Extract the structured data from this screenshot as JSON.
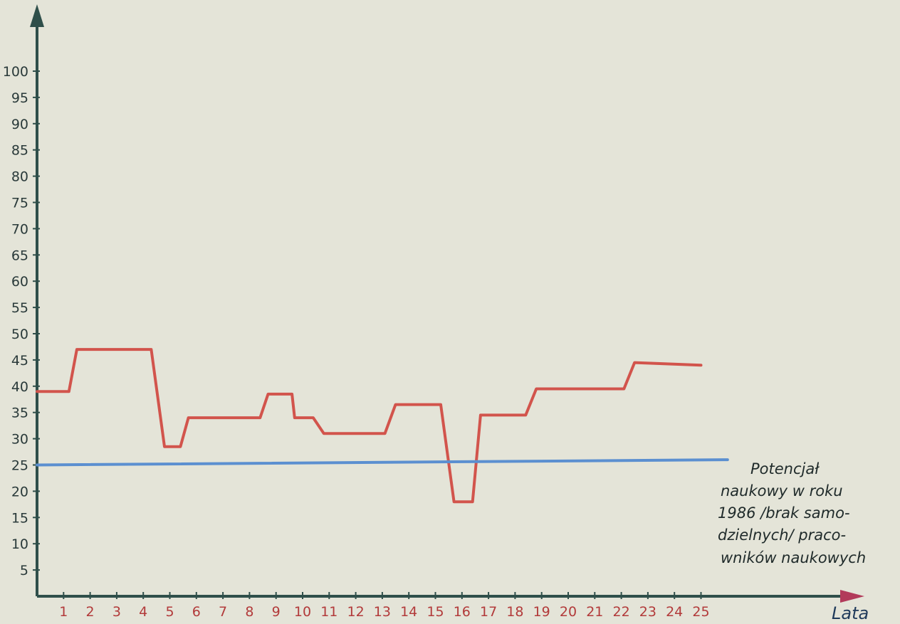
{
  "chart_data": {
    "type": "line",
    "title": "",
    "xlabel": "Lata",
    "ylabel": "",
    "x_ticks": [
      1,
      2,
      3,
      4,
      5,
      6,
      7,
      8,
      9,
      10,
      11,
      12,
      13,
      14,
      15,
      16,
      17,
      18,
      19,
      20,
      21,
      22,
      23,
      24,
      25
    ],
    "y_ticks": [
      5,
      10,
      15,
      20,
      25,
      30,
      35,
      40,
      45,
      50,
      55,
      60,
      65,
      70,
      75,
      80,
      85,
      90,
      95,
      100
    ],
    "xlim": [
      0,
      26.5
    ],
    "ylim": [
      0,
      110
    ],
    "grid": false,
    "series": [
      {
        "color": "#d2544c",
        "points": [
          [
            0,
            39
          ],
          [
            1.2,
            39
          ],
          [
            1.5,
            47
          ],
          [
            4.3,
            47
          ],
          [
            4.8,
            28.5
          ],
          [
            5.4,
            28.5
          ],
          [
            5.7,
            34
          ],
          [
            8.4,
            34
          ],
          [
            8.7,
            38.5
          ],
          [
            9.6,
            38.5
          ],
          [
            9.7,
            34
          ],
          [
            10.4,
            34
          ],
          [
            10.8,
            31
          ],
          [
            13.1,
            31
          ],
          [
            13.5,
            36.5
          ],
          [
            15.2,
            36.5
          ],
          [
            15.7,
            18
          ],
          [
            16.4,
            18
          ],
          [
            16.7,
            34.5
          ],
          [
            18.4,
            34.5
          ],
          [
            18.8,
            39.5
          ],
          [
            20.9,
            39.5
          ],
          [
            22.1,
            39.5
          ],
          [
            22.5,
            44.5
          ],
          [
            25,
            44
          ]
        ]
      },
      {
        "color": "#5b8fd0",
        "points": [
          [
            0,
            25
          ],
          [
            26,
            26
          ]
        ]
      }
    ],
    "annotation": {
      "lines": [
        "Potencjał",
        "naukowy w roku",
        "1986 /brak samo-",
        "dzielnych/ praco-",
        "wników naukowych"
      ]
    },
    "colors": {
      "axis": "#2f4f4a",
      "x_tick_labels": "#b23a3a",
      "y_tick_labels": "#2a3a3a",
      "axis_title": "#1f3a5a",
      "annotation": "#1f2a2a"
    }
  }
}
